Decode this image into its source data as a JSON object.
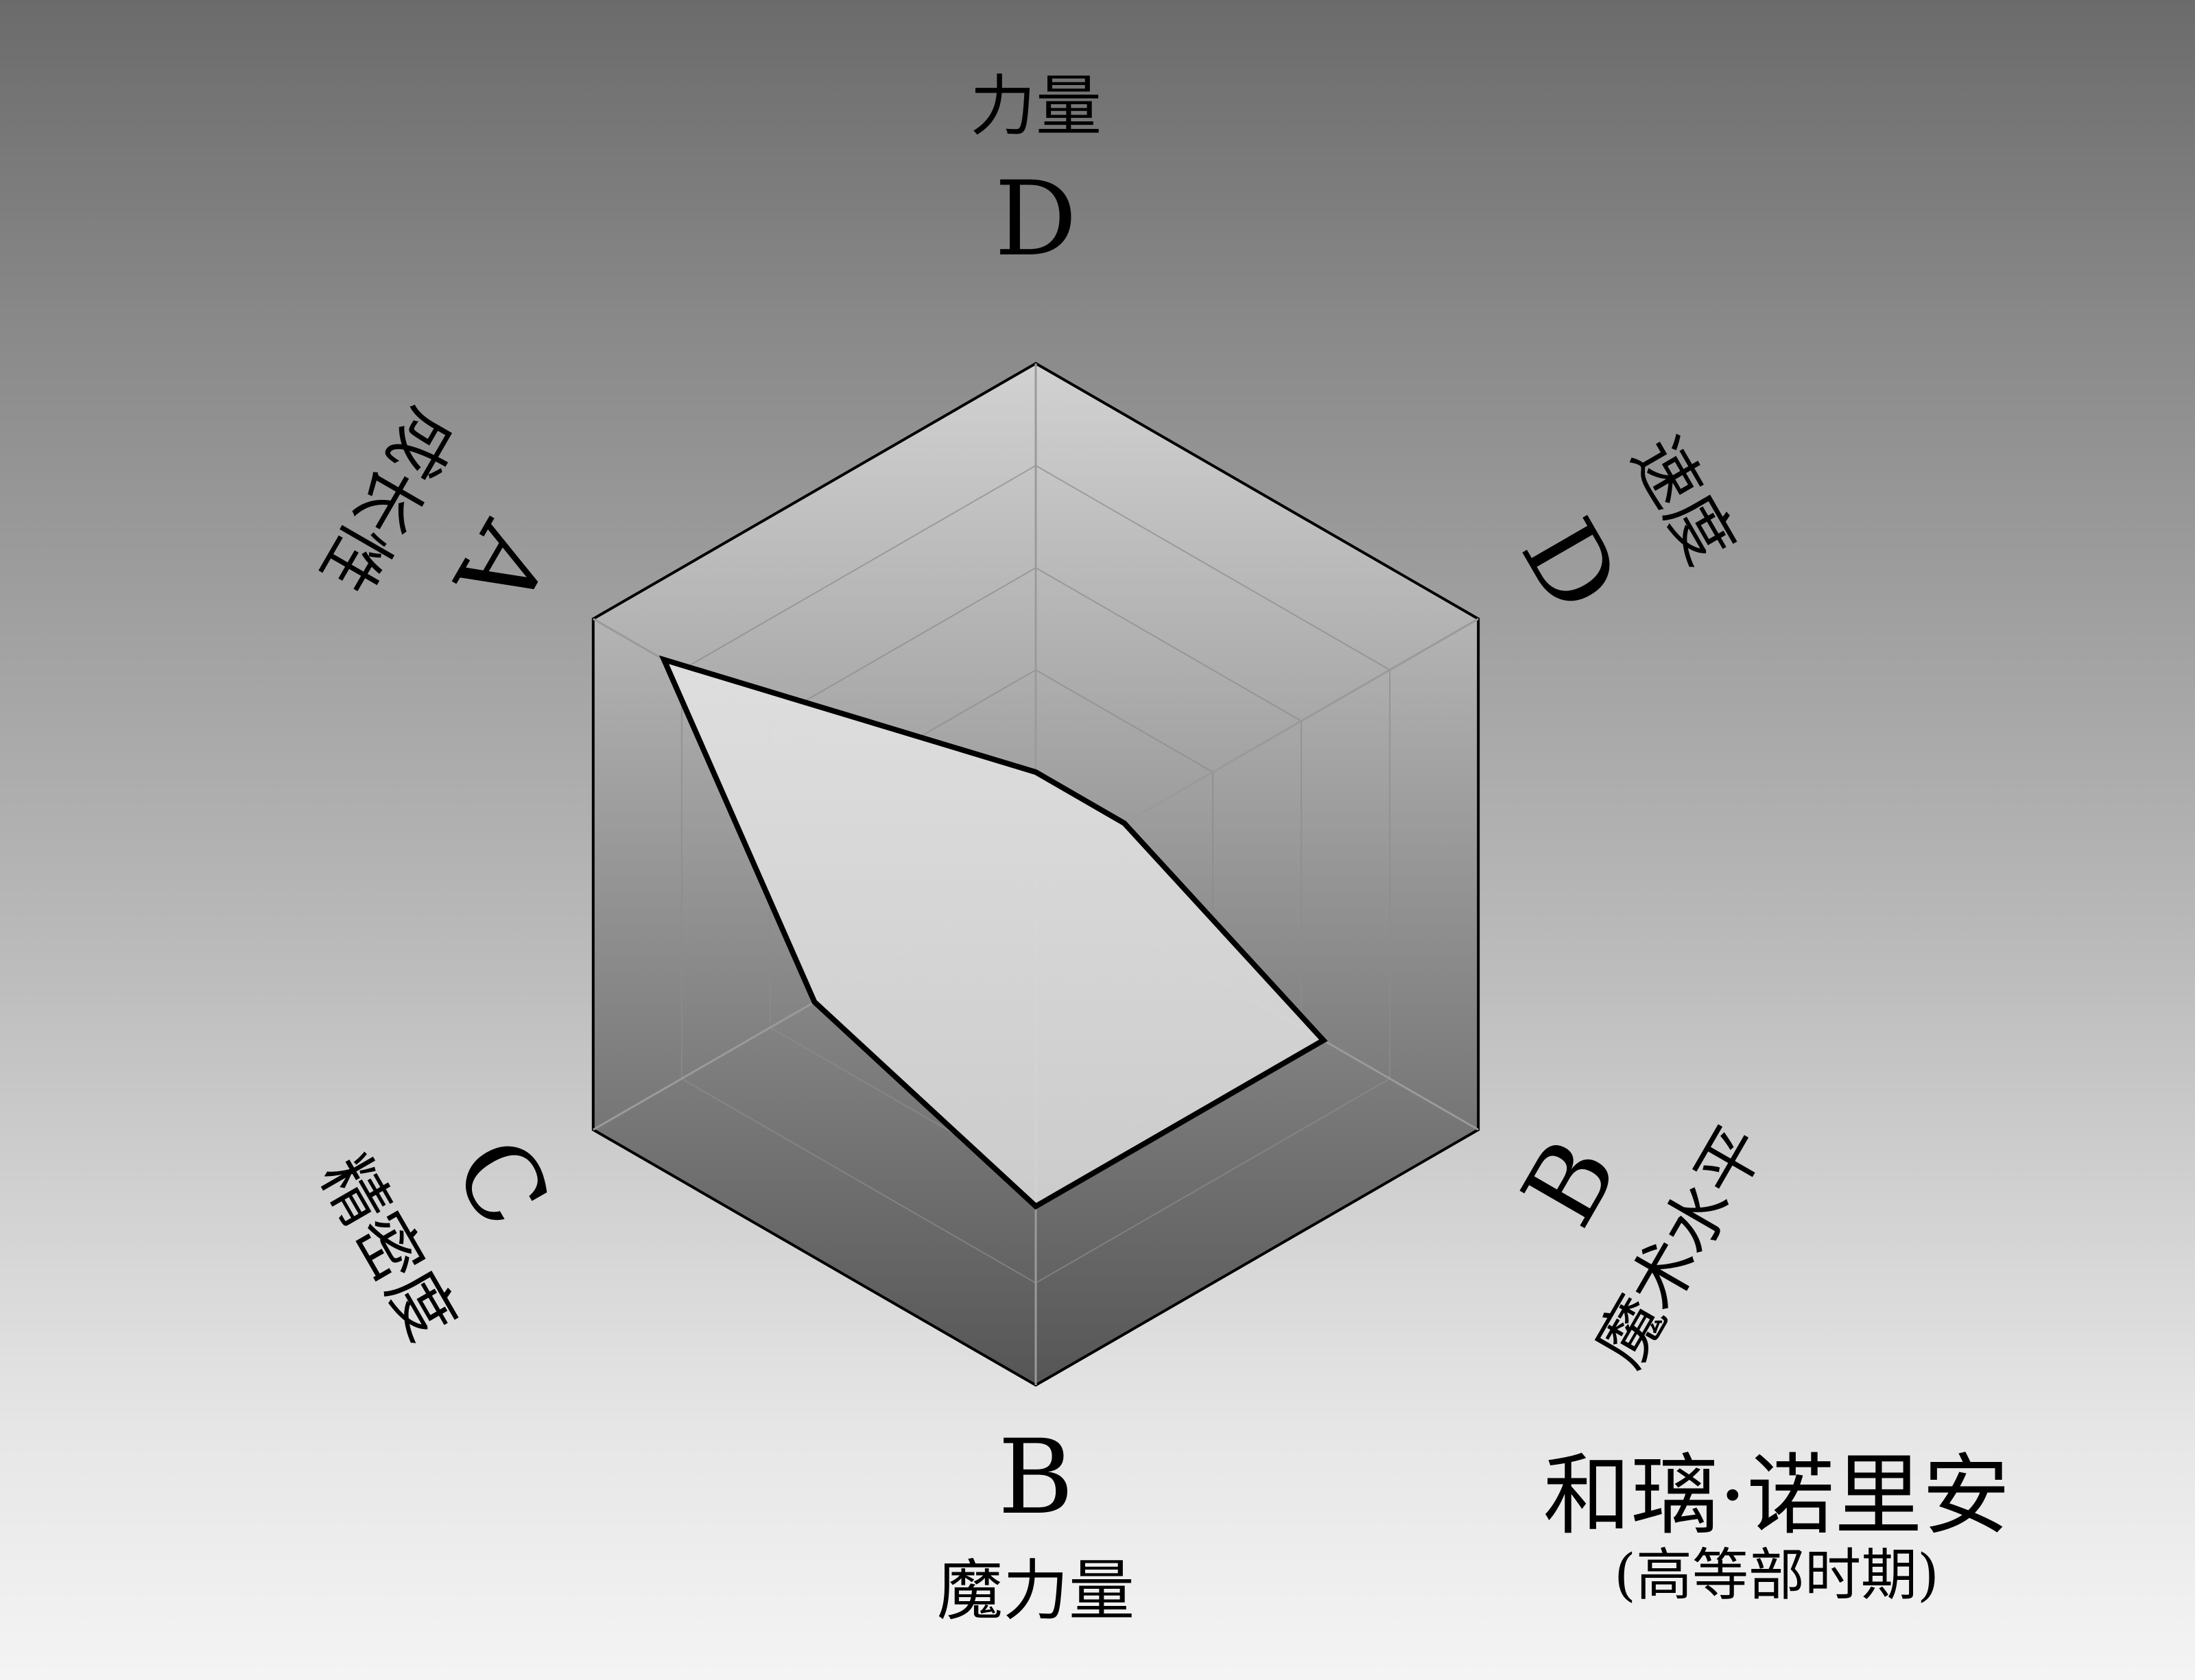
{
  "chart_data": {
    "type": "radar",
    "axes": [
      {
        "name": "力量",
        "grade": "D",
        "value": 1
      },
      {
        "name": "速度",
        "grade": "D",
        "value": 1
      },
      {
        "name": "魔术水平",
        "grade": "B",
        "value": 3.25
      },
      {
        "name": "魔力量",
        "grade": "B",
        "value": 3.25
      },
      {
        "name": "精密度",
        "grade": "C",
        "value": 2.5
      },
      {
        "name": "成长性",
        "grade": "A",
        "value": 4.2
      }
    ],
    "scale_max": 5,
    "rings": 5,
    "grid": true
  },
  "caption": {
    "name": "和璃·诺里安",
    "period": "(高等部时期)"
  }
}
